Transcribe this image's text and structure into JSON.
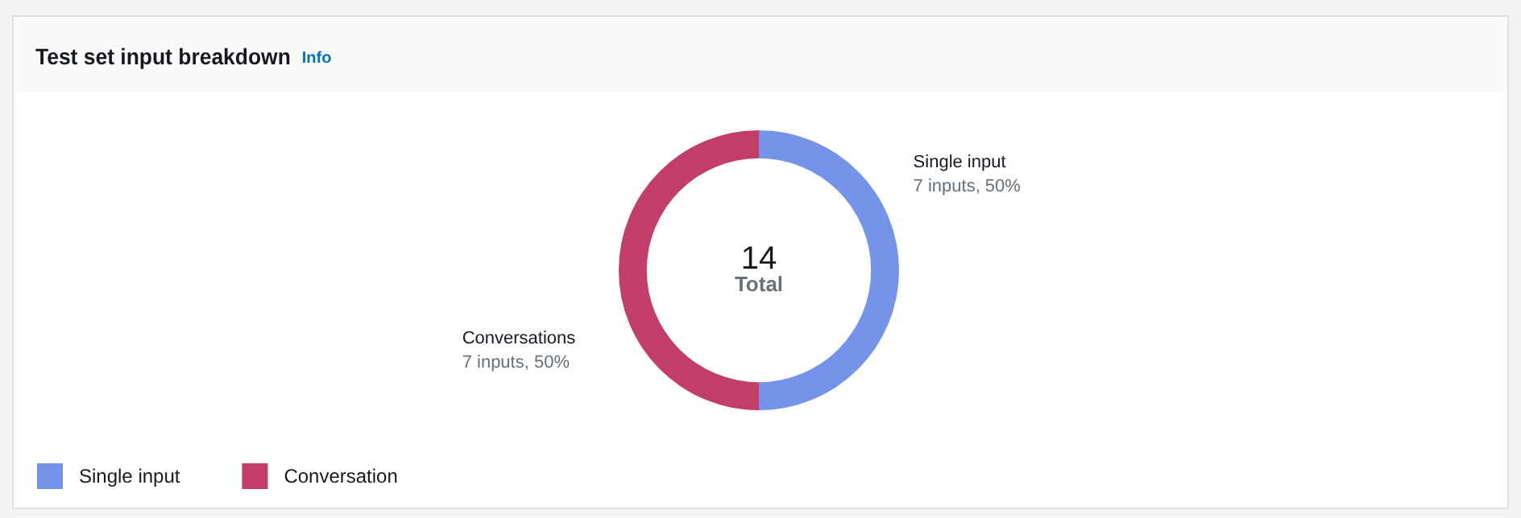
{
  "chart_data": {
    "type": "donut",
    "title": "Test set input breakdown",
    "categories": [
      "Single input",
      "Conversation"
    ],
    "values": [
      7,
      7
    ],
    "colors": [
      "#7594e9",
      "#c33d69"
    ],
    "value_labels": [
      "Single input\n7 inputs, 50%",
      "Conversations\n7 inputs, 50%"
    ],
    "annotations": [
      "Info",
      "14",
      "Total"
    ],
    "legend": "bottom left"
  }
}
